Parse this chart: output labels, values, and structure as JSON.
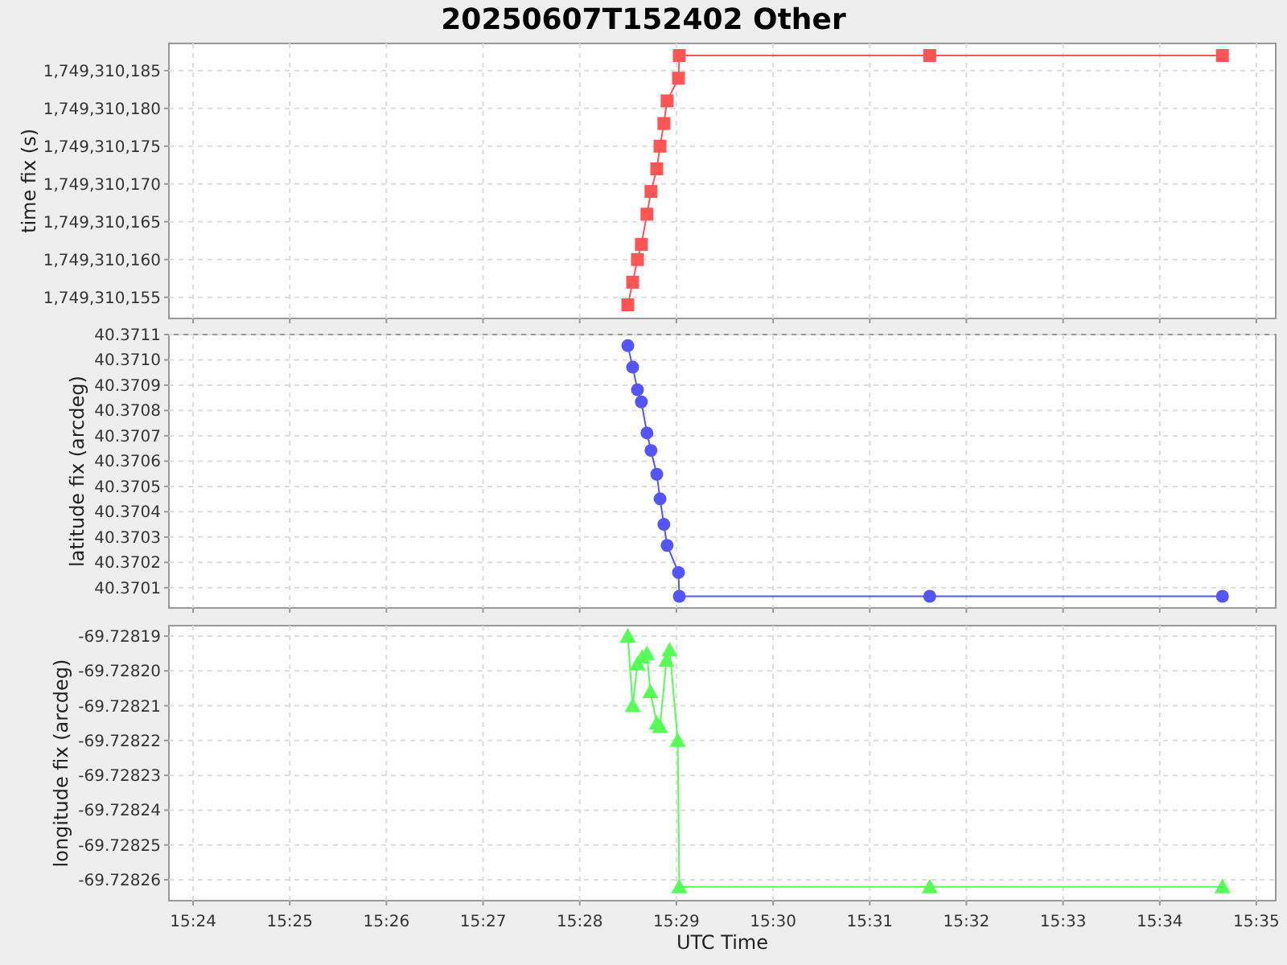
{
  "chart_data": [
    {
      "type": "line",
      "title": "20250607T152402 Other",
      "ylabel": "time fix (s)",
      "marker": "square",
      "grid": true,
      "tick_labels": "y",
      "x": [
        15.47496,
        15.47579,
        15.47662,
        15.47729,
        15.47826,
        15.47895,
        15.47995,
        15.48051,
        15.48117,
        15.48173,
        15.48369,
        15.48383,
        15.52701,
        15.57748
      ],
      "series": [
        {
          "color": "#ff5555",
          "values": [
            1749310154,
            1749310157,
            1749310160,
            1749310162,
            1749310166,
            1749310169,
            1749310172,
            1749310175,
            1749310178,
            1749310181,
            1749310184,
            1749310187,
            1749310187,
            1749310187
          ]
        }
      ],
      "xlim": [
        15.39583,
        15.58667
      ],
      "xticks": [
        {
          "value": 15.4,
          "label": null
        },
        {
          "value": 15.41667,
          "label": null
        },
        {
          "value": 15.43333,
          "label": null
        },
        {
          "value": 15.45,
          "label": null
        },
        {
          "value": 15.46667,
          "label": null
        },
        {
          "value": 15.48333,
          "label": null
        },
        {
          "value": 15.5,
          "label": null
        },
        {
          "value": 15.51667,
          "label": null
        },
        {
          "value": 15.53333,
          "label": null
        },
        {
          "value": 15.55,
          "label": null
        },
        {
          "value": 15.56667,
          "label": null
        },
        {
          "value": 15.58333,
          "label": null
        }
      ],
      "ylim": [
        1749310152.2,
        1749310188.6
      ],
      "yticks": [
        {
          "value": 1749310155,
          "label": "1,749,310,155"
        },
        {
          "value": 1749310160,
          "label": "1,749,310,160"
        },
        {
          "value": 1749310165,
          "label": "1,749,310,165"
        },
        {
          "value": 1749310170,
          "label": "1,749,310,170"
        },
        {
          "value": 1749310175,
          "label": "1,749,310,175"
        },
        {
          "value": 1749310180,
          "label": "1,749,310,180"
        },
        {
          "value": 1749310185,
          "label": "1,749,310,185"
        }
      ]
    },
    {
      "type": "line",
      "ylabel": "latitude fix (arcdeg)",
      "marker": "circle",
      "grid": true,
      "tick_labels": "y",
      "x": [
        15.47496,
        15.47579,
        15.47662,
        15.47729,
        15.47826,
        15.47895,
        15.47995,
        15.48051,
        15.48117,
        15.48173,
        15.48369,
        15.48383,
        15.52701,
        15.57748
      ],
      "series": [
        {
          "color": "#5555ff",
          "values": [
            40.371056,
            40.370971,
            40.370882,
            40.370834,
            40.370711,
            40.370642,
            40.370548,
            40.370451,
            40.37035,
            40.370267,
            40.37016,
            40.370066,
            40.370066,
            40.370066
          ]
        }
      ],
      "xlim": [
        15.39583,
        15.58667
      ],
      "xticks": [
        {
          "value": 15.4,
          "label": null
        },
        {
          "value": 15.41667,
          "label": null
        },
        {
          "value": 15.43333,
          "label": null
        },
        {
          "value": 15.45,
          "label": null
        },
        {
          "value": 15.46667,
          "label": null
        },
        {
          "value": 15.48333,
          "label": null
        },
        {
          "value": 15.5,
          "label": null
        },
        {
          "value": 15.51667,
          "label": null
        },
        {
          "value": 15.53333,
          "label": null
        },
        {
          "value": 15.55,
          "label": null
        },
        {
          "value": 15.56667,
          "label": null
        },
        {
          "value": 15.58333,
          "label": null
        }
      ],
      "ylim": [
        40.37002,
        40.3711
      ],
      "yticks": [
        {
          "value": 40.3701,
          "label": "40.3701"
        },
        {
          "value": 40.3702,
          "label": "40.3702"
        },
        {
          "value": 40.3703,
          "label": "40.3703"
        },
        {
          "value": 40.3704,
          "label": "40.3704"
        },
        {
          "value": 40.3705,
          "label": "40.3705"
        },
        {
          "value": 40.3706,
          "label": "40.3706"
        },
        {
          "value": 40.3707,
          "label": "40.3707"
        },
        {
          "value": 40.3708,
          "label": "40.3708"
        },
        {
          "value": 40.3709,
          "label": "40.3709"
        },
        {
          "value": 40.371,
          "label": "40.3710"
        },
        {
          "value": 40.3711,
          "label": "40.3711"
        }
      ]
    },
    {
      "type": "line",
      "xlabel": "UTC Time",
      "ylabel": "longitude fix (arcdeg)",
      "marker": "triangle",
      "grid": true,
      "x": [
        15.47496,
        15.47579,
        15.47662,
        15.47746,
        15.47826,
        15.47884,
        15.47995,
        15.48051,
        15.48161,
        15.48217,
        15.48356,
        15.48383,
        15.52701,
        15.57748
      ],
      "series": [
        {
          "color": "#55ff55",
          "values": [
            -69.72819,
            -69.72821,
            -69.728198,
            -69.728196,
            -69.728195,
            -69.728206,
            -69.728215,
            -69.728216,
            -69.728197,
            -69.728194,
            -69.72822,
            -69.728262,
            -69.728262,
            -69.728262
          ]
        }
      ],
      "xlim": [
        15.39583,
        15.58667
      ],
      "xticks": [
        {
          "value": 15.4,
          "label": "15:24"
        },
        {
          "value": 15.41667,
          "label": "15:25"
        },
        {
          "value": 15.43333,
          "label": "15:26"
        },
        {
          "value": 15.45,
          "label": "15:27"
        },
        {
          "value": 15.46667,
          "label": "15:28"
        },
        {
          "value": 15.48333,
          "label": "15:29"
        },
        {
          "value": 15.5,
          "label": "15:30"
        },
        {
          "value": 15.51667,
          "label": "15:31"
        },
        {
          "value": 15.53333,
          "label": "15:32"
        },
        {
          "value": 15.55,
          "label": "15:33"
        },
        {
          "value": 15.56667,
          "label": "15:34"
        },
        {
          "value": 15.58333,
          "label": "15:35"
        }
      ],
      "ylim": [
        -69.728266,
        -69.728187
      ],
      "yticks": [
        {
          "value": -69.72819,
          "label": "-69.72819"
        },
        {
          "value": -69.7282,
          "label": "-69.72820"
        },
        {
          "value": -69.72821,
          "label": "-69.72821"
        },
        {
          "value": -69.72822,
          "label": "-69.72822"
        },
        {
          "value": -69.72823,
          "label": "-69.72823"
        },
        {
          "value": -69.72824,
          "label": "-69.72824"
        },
        {
          "value": -69.72825,
          "label": "-69.72825"
        },
        {
          "value": -69.72826,
          "label": "-69.72826"
        }
      ]
    }
  ]
}
